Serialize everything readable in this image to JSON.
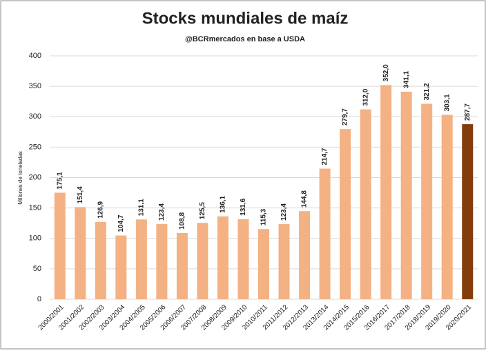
{
  "chart_data": {
    "type": "bar",
    "title": "Stocks mundiales de maíz",
    "subtitle": "@BCRmercados en base a USDA",
    "y_label": "Millones de toneladas",
    "categories": [
      "2000/2001",
      "2001/2002",
      "2002/2003",
      "2003/2004",
      "2004/2005",
      "2005/2006",
      "2006/2007",
      "2007/2008",
      "2008/2009",
      "2009/2010",
      "2010/2011",
      "2011/2012",
      "2012/2013",
      "2013/2014",
      "2014/2015",
      "2015/2016",
      "2016/2017",
      "2017/2018",
      "2018/2019",
      "2019/2020",
      "2020/2021"
    ],
    "values": [
      175.1,
      151.4,
      126.9,
      104.7,
      131.1,
      123.4,
      108.8,
      125.5,
      136.1,
      131.6,
      115.3,
      123.4,
      144.8,
      214.7,
      279.7,
      312.0,
      352.0,
      341.1,
      321.2,
      303.1,
      287.7
    ],
    "value_labels": [
      "175,1",
      "151,4",
      "126,9",
      "104,7",
      "131,1",
      "123,4",
      "108,8",
      "125,5",
      "136,1",
      "131,6",
      "115,3",
      "123,4",
      "144,8",
      "214,7",
      "279,7",
      "312,0",
      "352,0",
      "341,1",
      "321,2",
      "303,1",
      "287,7"
    ],
    "colors": [
      "#f4b183",
      "#f4b183",
      "#f4b183",
      "#f4b183",
      "#f4b183",
      "#f4b183",
      "#f4b183",
      "#f4b183",
      "#f4b183",
      "#f4b183",
      "#f4b183",
      "#f4b183",
      "#f4b183",
      "#f4b183",
      "#f4b183",
      "#f4b183",
      "#f4b183",
      "#f4b183",
      "#f4b183",
      "#f4b183",
      "#843c0c"
    ],
    "ylim": [
      0,
      400
    ],
    "yticks": [
      0,
      50,
      100,
      150,
      200,
      250,
      300,
      350,
      400
    ],
    "grid": true
  }
}
